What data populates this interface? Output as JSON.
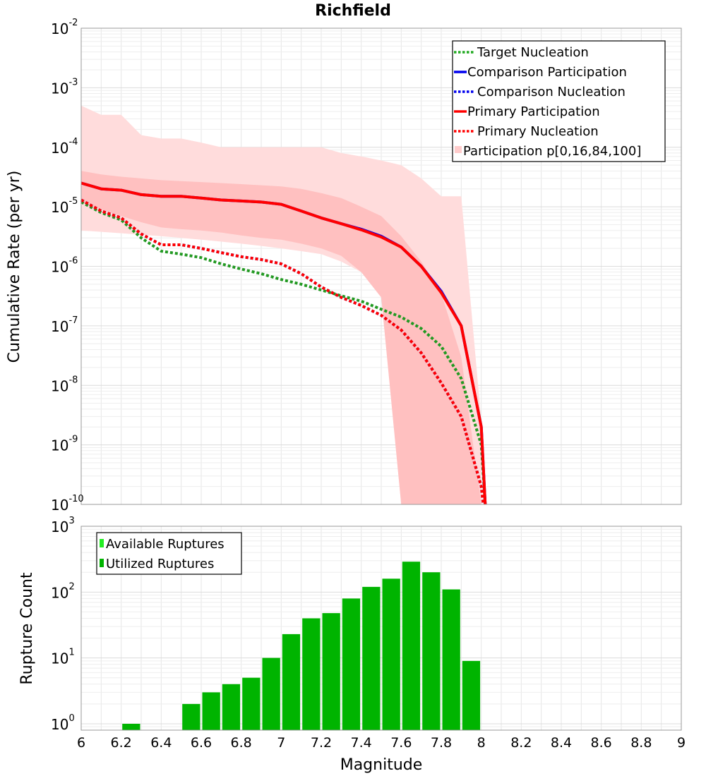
{
  "title": "Richfield",
  "chart_data": [
    {
      "type": "line",
      "title": "Richfield",
      "xlabel": "Magnitude",
      "ylabel": "Cumulative Rate (per yr)",
      "yscale": "log",
      "xlim": [
        6,
        9
      ],
      "ylim": [
        1e-10,
        0.01
      ],
      "ytick_exponents": [
        -2,
        -3,
        -4,
        -5,
        -6,
        -7,
        -8,
        -9,
        -10
      ],
      "ytick_base": "10",
      "legend_position": "top-right",
      "band": {
        "name": "Participation p[0,16,84,100]",
        "color": "#ffdcdc",
        "inner_color": "#ffc0c0",
        "x": [
          6.0,
          6.1,
          6.2,
          6.3,
          6.4,
          6.5,
          6.6,
          6.7,
          6.8,
          6.9,
          7.0,
          7.1,
          7.2,
          7.3,
          7.4,
          7.5,
          7.6,
          7.7,
          7.8,
          7.9,
          8.0
        ],
        "p0": [
          4e-06,
          3.8e-06,
          3.6e-06,
          3.4e-06,
          3.2e-06,
          3e-06,
          2.8e-06,
          2.6e-06,
          2.4e-06,
          2.2e-06,
          2e-06,
          1.8e-06,
          1.6e-06,
          1.2e-06,
          8e-07,
          3.5e-07,
          1e-10,
          1e-10,
          1e-10,
          1e-10,
          1e-10
        ],
        "p16": [
          1.2e-05,
          9e-06,
          7e-06,
          5.5e-06,
          4.5e-06,
          4.2e-06,
          4e-06,
          3.7e-06,
          3.3e-06,
          3e-06,
          2.8e-06,
          2.4e-06,
          2e-06,
          1.5e-06,
          8e-07,
          3e-07,
          1e-10,
          1e-10,
          1e-10,
          1e-10,
          1e-10
        ],
        "p84": [
          4e-05,
          3.5e-05,
          3.2e-05,
          3e-05,
          2.8e-05,
          2.7e-05,
          2.6e-05,
          2.5e-05,
          2.4e-05,
          2.3e-05,
          2.2e-05,
          2e-05,
          1.7e-05,
          1.4e-05,
          1e-05,
          7e-06,
          3.2e-06,
          1.2e-06,
          3.5e-07,
          3e-08,
          1e-10
        ],
        "p100": [
          0.0005,
          0.00035,
          0.00035,
          0.00016,
          0.00014,
          0.00014,
          0.00012,
          0.0001,
          0.0001,
          0.0001,
          0.0001,
          0.0001,
          0.0001,
          8e-05,
          7e-05,
          6e-05,
          5e-05,
          3e-05,
          1.5e-05,
          1.5e-05,
          2.5e-09
        ]
      },
      "series": [
        {
          "name": "Target Nucleation",
          "color": "#229922",
          "style": "dotted",
          "x": [
            6.0,
            6.1,
            6.2,
            6.3,
            6.4,
            6.5,
            6.6,
            6.7,
            6.8,
            6.9,
            7.0,
            7.1,
            7.2,
            7.3,
            7.4,
            7.5,
            7.6,
            7.7,
            7.8,
            7.9,
            8.0,
            8.02
          ],
          "values": [
            1.2e-05,
            8e-06,
            6e-06,
            3e-06,
            1.8e-06,
            1.6e-06,
            1.4e-06,
            1.1e-06,
            9e-07,
            7.5e-07,
            6e-07,
            5e-07,
            4e-07,
            3.2e-07,
            2.6e-07,
            1.9e-07,
            1.4e-07,
            9e-08,
            4.5e-08,
            1.3e-08,
            1e-09,
            1e-10
          ]
        },
        {
          "name": "Comparison Participation",
          "color": "#0000ee",
          "style": "solid",
          "x": [
            6.0,
            6.1,
            6.2,
            6.3,
            6.4,
            6.5,
            6.6,
            6.7,
            6.8,
            6.9,
            7.0,
            7.1,
            7.2,
            7.3,
            7.4,
            7.5,
            7.6,
            7.7,
            7.8,
            7.9,
            8.0,
            8.02
          ],
          "values": [
            2.5e-05,
            2e-05,
            1.9e-05,
            1.6e-05,
            1.5e-05,
            1.5e-05,
            1.4e-05,
            1.3e-05,
            1.25e-05,
            1.2e-05,
            1.1e-05,
            8.5e-06,
            6.5e-06,
            5.2e-06,
            4.2e-06,
            3.2e-06,
            2.1e-06,
            1e-06,
            3.8e-07,
            1e-07,
            2e-09,
            1e-10
          ]
        },
        {
          "name": "Comparison Nucleation",
          "color": "#0000ee",
          "style": "dotted",
          "x": [
            6.0,
            6.1,
            6.2,
            6.3,
            6.4,
            6.5,
            6.6,
            6.7,
            6.8,
            6.9,
            7.0,
            7.1,
            7.2,
            7.3,
            7.4,
            7.5,
            7.6,
            7.7,
            7.8,
            7.9,
            8.0,
            8.01
          ],
          "values": [
            1.3e-05,
            8.5e-06,
            6.5e-06,
            3.5e-06,
            2.3e-06,
            2.3e-06,
            2e-06,
            1.7e-06,
            1.45e-06,
            1.3e-06,
            1.1e-06,
            7.5e-07,
            4.5e-07,
            3e-07,
            2.2e-07,
            1.5e-07,
            8.5e-08,
            3.5e-08,
            1.1e-08,
            3e-09,
            2e-10,
            1e-10
          ]
        },
        {
          "name": "Primary Participation",
          "color": "#ff0000",
          "style": "solid",
          "x": [
            6.0,
            6.1,
            6.2,
            6.3,
            6.4,
            6.5,
            6.6,
            6.7,
            6.8,
            6.9,
            7.0,
            7.1,
            7.2,
            7.3,
            7.4,
            7.5,
            7.6,
            7.7,
            7.8,
            7.9,
            8.0,
            8.02
          ],
          "values": [
            2.5e-05,
            2e-05,
            1.9e-05,
            1.6e-05,
            1.5e-05,
            1.5e-05,
            1.4e-05,
            1.3e-05,
            1.25e-05,
            1.2e-05,
            1.1e-05,
            8.5e-06,
            6.5e-06,
            5.2e-06,
            4.1e-06,
            3.1e-06,
            2.1e-06,
            1e-06,
            3.6e-07,
            1e-07,
            2e-09,
            1e-10
          ]
        },
        {
          "name": "Primary Nucleation",
          "color": "#ff0000",
          "style": "dotted",
          "x": [
            6.0,
            6.1,
            6.2,
            6.3,
            6.4,
            6.5,
            6.6,
            6.7,
            6.8,
            6.9,
            7.0,
            7.1,
            7.2,
            7.3,
            7.4,
            7.5,
            7.6,
            7.7,
            7.8,
            7.9,
            8.0,
            8.01
          ],
          "values": [
            1.3e-05,
            8.5e-06,
            6.5e-06,
            3.5e-06,
            2.3e-06,
            2.3e-06,
            2e-06,
            1.7e-06,
            1.45e-06,
            1.3e-06,
            1.1e-06,
            7.5e-07,
            4.5e-07,
            3e-07,
            2.2e-07,
            1.5e-07,
            8.5e-08,
            3.5e-08,
            1.1e-08,
            3e-09,
            2e-10,
            1e-10
          ]
        }
      ]
    },
    {
      "type": "bar",
      "xlabel": "Magnitude",
      "ylabel": "Rupture Count",
      "yscale": "log",
      "xlim": [
        6,
        9
      ],
      "ylim": [
        0.8,
        1000
      ],
      "ytick_exponents": [
        3,
        2,
        1,
        0
      ],
      "ytick_base": "10",
      "xticks": [
        "6",
        "6.2",
        "6.4",
        "6.6",
        "6.8",
        "7",
        "7.2",
        "7.4",
        "7.6",
        "7.8",
        "8",
        "8.2",
        "8.4",
        "8.6",
        "8.8",
        "9"
      ],
      "bar_width": 0.1,
      "legend_position": "top-left",
      "series": [
        {
          "name": "Available Ruptures",
          "color": "#22ee22",
          "x": [],
          "values": []
        },
        {
          "name": "Utilized Ruptures",
          "color": "#00b400",
          "x": [
            6.2,
            6.5,
            6.6,
            6.7,
            6.8,
            6.9,
            7.0,
            7.1,
            7.2,
            7.3,
            7.4,
            7.5,
            7.6,
            7.7,
            7.8,
            7.9
          ],
          "values": [
            1,
            2,
            3,
            4,
            5,
            10,
            23,
            40,
            48,
            80,
            120,
            160,
            290,
            200,
            110,
            9
          ]
        }
      ]
    }
  ]
}
